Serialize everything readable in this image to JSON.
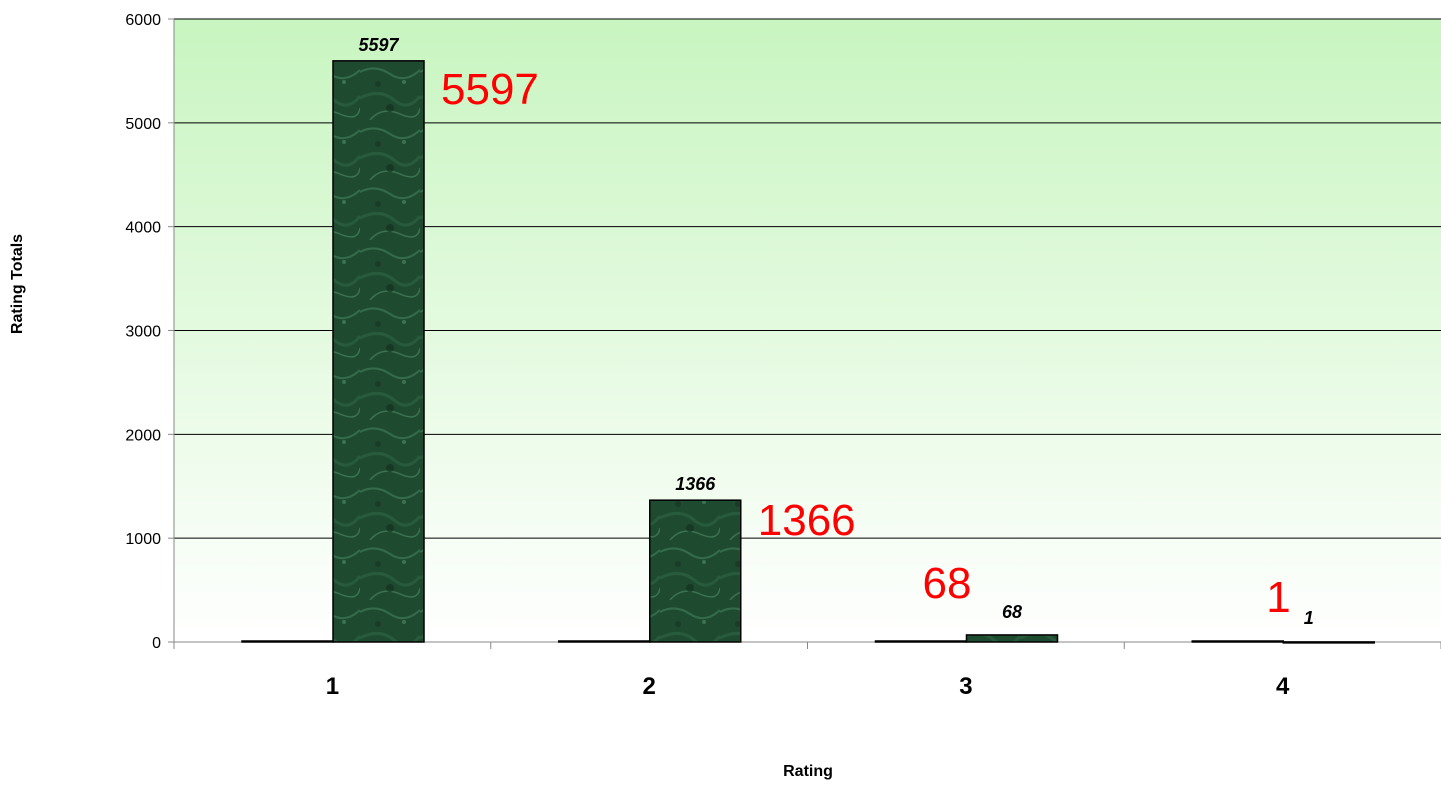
{
  "chart_data": {
    "type": "bar",
    "title": "",
    "xlabel": "Rating",
    "ylabel": "Rating Totals",
    "categories": [
      "1",
      "2",
      "3",
      "4"
    ],
    "series": [
      {
        "values": [
          0,
          0,
          0,
          0
        ]
      },
      {
        "values": [
          5597,
          1366,
          68,
          1
        ]
      }
    ],
    "ylim": [
      0,
      6000
    ],
    "yticks": [
      "0",
      "1000",
      "2000",
      "3000",
      "4000",
      "5000",
      "6000"
    ],
    "ytick_values": [
      0,
      1000,
      2000,
      3000,
      4000,
      5000,
      6000
    ],
    "data_labels": [
      "5597",
      "1366",
      "68",
      "1"
    ],
    "grid": true,
    "legend": "none",
    "colors": {
      "plot_background_top": "#c8f5c0",
      "plot_background_bottom": "#ffffff",
      "bar_fill": "#1e4a30",
      "bar_stroke": "#000000",
      "gridline": "#000000",
      "axis": "#888888",
      "secondary_label": "#ff0000"
    }
  }
}
